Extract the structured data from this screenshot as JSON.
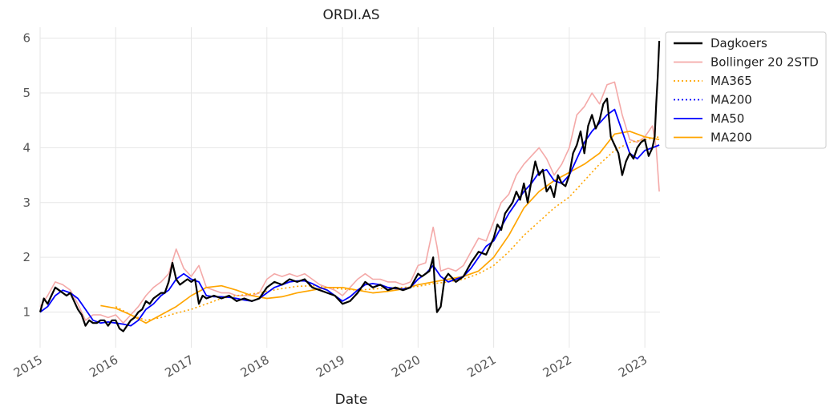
{
  "chart_data": {
    "type": "line",
    "title": "ORDI.AS",
    "xlabel": "Date",
    "ylabel": "",
    "x_ticks": [
      "2015",
      "2016",
      "2017",
      "2018",
      "2019",
      "2020",
      "2021",
      "2022",
      "2023"
    ],
    "y_ticks": [
      "1",
      "2",
      "3",
      "4",
      "5",
      "6"
    ],
    "xlim": [
      2015.0,
      2023.2
    ],
    "ylim": [
      0.35,
      6.2
    ],
    "grid": true,
    "legend_position": "top-right",
    "series": [
      {
        "name": "Dagkoers",
        "color": "#000000",
        "style": "solid",
        "x": [
          2015.0,
          2015.05,
          2015.1,
          2015.15,
          2015.2,
          2015.25,
          2015.3,
          2015.35,
          2015.4,
          2015.45,
          2015.5,
          2015.55,
          2015.6,
          2015.65,
          2015.7,
          2015.75,
          2015.8,
          2015.85,
          2015.9,
          2015.95,
          2016.0,
          2016.05,
          2016.1,
          2016.15,
          2016.2,
          2016.25,
          2016.3,
          2016.35,
          2016.4,
          2016.45,
          2016.5,
          2016.55,
          2016.6,
          2016.65,
          2016.7,
          2016.75,
          2016.8,
          2016.85,
          2016.9,
          2016.95,
          2017.0,
          2017.05,
          2017.1,
          2017.15,
          2017.2,
          2017.3,
          2017.4,
          2017.5,
          2017.6,
          2017.7,
          2017.8,
          2017.9,
          2018.0,
          2018.1,
          2018.2,
          2018.3,
          2018.4,
          2018.5,
          2018.6,
          2018.7,
          2018.8,
          2018.9,
          2019.0,
          2019.1,
          2019.2,
          2019.3,
          2019.4,
          2019.5,
          2019.6,
          2019.7,
          2019.8,
          2019.9,
          2020.0,
          2020.05,
          2020.1,
          2020.15,
          2020.2,
          2020.22,
          2020.25,
          2020.3,
          2020.35,
          2020.4,
          2020.5,
          2020.6,
          2020.7,
          2020.8,
          2020.9,
          2021.0,
          2021.05,
          2021.1,
          2021.15,
          2021.2,
          2021.25,
          2021.3,
          2021.35,
          2021.4,
          2021.45,
          2021.5,
          2021.55,
          2021.6,
          2021.65,
          2021.7,
          2021.75,
          2021.8,
          2021.85,
          2021.9,
          2021.95,
          2022.0,
          2022.05,
          2022.1,
          2022.15,
          2022.2,
          2022.25,
          2022.3,
          2022.35,
          2022.4,
          2022.45,
          2022.5,
          2022.55,
          2022.6,
          2022.65,
          2022.7,
          2022.75,
          2022.8,
          2022.85,
          2022.9,
          2022.95,
          2023.0,
          2023.05,
          2023.1,
          2023.13,
          2023.15,
          2023.17,
          2023.19
        ],
        "y": [
          1.0,
          1.25,
          1.15,
          1.3,
          1.45,
          1.4,
          1.35,
          1.3,
          1.35,
          1.2,
          1.05,
          0.95,
          0.75,
          0.85,
          0.8,
          0.8,
          0.85,
          0.85,
          0.75,
          0.85,
          0.85,
          0.7,
          0.65,
          0.75,
          0.85,
          0.9,
          1.0,
          1.05,
          1.2,
          1.15,
          1.25,
          1.3,
          1.35,
          1.35,
          1.55,
          1.9,
          1.6,
          1.5,
          1.55,
          1.6,
          1.55,
          1.6,
          1.15,
          1.3,
          1.25,
          1.3,
          1.25,
          1.3,
          1.2,
          1.25,
          1.2,
          1.25,
          1.45,
          1.55,
          1.5,
          1.6,
          1.55,
          1.6,
          1.45,
          1.4,
          1.35,
          1.3,
          1.15,
          1.2,
          1.35,
          1.55,
          1.45,
          1.5,
          1.4,
          1.45,
          1.4,
          1.45,
          1.7,
          1.65,
          1.7,
          1.75,
          2.0,
          1.5,
          1.0,
          1.1,
          1.6,
          1.7,
          1.55,
          1.65,
          1.9,
          2.1,
          2.05,
          2.35,
          2.6,
          2.5,
          2.8,
          2.9,
          3.0,
          3.2,
          3.05,
          3.35,
          3.0,
          3.4,
          3.75,
          3.5,
          3.6,
          3.2,
          3.3,
          3.1,
          3.5,
          3.35,
          3.3,
          3.5,
          3.9,
          4.05,
          4.3,
          3.9,
          4.4,
          4.6,
          4.35,
          4.5,
          4.8,
          4.9,
          4.2,
          4.05,
          3.9,
          3.5,
          3.75,
          3.9,
          3.8,
          4.0,
          4.1,
          4.15,
          3.85,
          4.0,
          4.2,
          4.8,
          5.3,
          5.95
        ]
      },
      {
        "name": "Bollinger 20 2STD",
        "color": "#f4a9a8",
        "style": "solid",
        "x": [
          2015.0,
          2015.1,
          2015.2,
          2015.3,
          2015.4,
          2015.5,
          2015.6,
          2015.7,
          2015.8,
          2015.9,
          2016.0,
          2016.1,
          2016.2,
          2016.3,
          2016.4,
          2016.5,
          2016.6,
          2016.7,
          2016.8,
          2016.9,
          2017.0,
          2017.1,
          2017.2,
          2017.3,
          2017.4,
          2017.5,
          2017.6,
          2017.7,
          2017.8,
          2017.9,
          2018.0,
          2018.1,
          2018.2,
          2018.3,
          2018.4,
          2018.5,
          2018.6,
          2018.7,
          2018.8,
          2018.9,
          2019.0,
          2019.1,
          2019.2,
          2019.3,
          2019.4,
          2019.5,
          2019.6,
          2019.7,
          2019.8,
          2019.9,
          2020.0,
          2020.1,
          2020.2,
          2020.25,
          2020.3,
          2020.4,
          2020.5,
          2020.6,
          2020.7,
          2020.8,
          2020.9,
          2021.0,
          2021.1,
          2021.2,
          2021.3,
          2021.4,
          2021.5,
          2021.6,
          2021.7,
          2021.8,
          2021.9,
          2022.0,
          2022.1,
          2022.2,
          2022.3,
          2022.4,
          2022.5,
          2022.6,
          2022.7,
          2022.8,
          2022.9,
          2023.0,
          2023.1,
          2023.15,
          2023.19
        ],
        "y": [
          1.1,
          1.3,
          1.55,
          1.5,
          1.4,
          1.15,
          0.85,
          0.95,
          0.95,
          0.9,
          0.95,
          0.8,
          0.95,
          1.1,
          1.3,
          1.45,
          1.55,
          1.7,
          2.15,
          1.8,
          1.65,
          1.85,
          1.45,
          1.4,
          1.35,
          1.35,
          1.3,
          1.3,
          1.3,
          1.35,
          1.6,
          1.7,
          1.65,
          1.7,
          1.65,
          1.7,
          1.6,
          1.5,
          1.45,
          1.4,
          1.3,
          1.45,
          1.6,
          1.7,
          1.6,
          1.6,
          1.55,
          1.55,
          1.5,
          1.55,
          1.85,
          1.9,
          2.55,
          2.2,
          1.75,
          1.8,
          1.75,
          1.85,
          2.1,
          2.35,
          2.3,
          2.65,
          3.0,
          3.15,
          3.5,
          3.7,
          3.85,
          4.0,
          3.8,
          3.5,
          3.7,
          4.0,
          4.6,
          4.75,
          5.0,
          4.8,
          5.15,
          5.2,
          4.6,
          4.15,
          4.1,
          4.2,
          4.4,
          4.0,
          3.2
        ]
      },
      {
        "name": "MA365",
        "color": "#ffa500",
        "style": "dotted",
        "x": [
          2016.0,
          2016.2,
          2016.4,
          2016.6,
          2016.8,
          2017.0,
          2017.2,
          2017.4,
          2017.6,
          2017.8,
          2018.0,
          2018.2,
          2018.4,
          2018.6,
          2018.8,
          2019.0,
          2019.2,
          2019.4,
          2019.6,
          2019.8,
          2020.0,
          2020.2,
          2020.4,
          2020.6,
          2020.8,
          2021.0,
          2021.2,
          2021.4,
          2021.6,
          2021.8,
          2022.0,
          2022.2,
          2022.4,
          2022.6,
          2022.8,
          2023.0,
          2023.19
        ],
        "y": [
          1.1,
          0.95,
          0.85,
          0.9,
          0.98,
          1.05,
          1.15,
          1.25,
          1.3,
          1.33,
          1.38,
          1.43,
          1.47,
          1.48,
          1.45,
          1.42,
          1.4,
          1.42,
          1.44,
          1.45,
          1.47,
          1.52,
          1.55,
          1.6,
          1.7,
          1.85,
          2.1,
          2.4,
          2.65,
          2.9,
          3.1,
          3.4,
          3.7,
          3.95,
          4.1,
          4.15,
          4.2
        ]
      },
      {
        "name": "MA200",
        "color": "#0000ff",
        "style": "dotted",
        "x": [],
        "y": []
      },
      {
        "name": "MA50",
        "color": "#0000ff",
        "style": "solid",
        "x": [
          2015.0,
          2015.1,
          2015.2,
          2015.3,
          2015.4,
          2015.5,
          2015.6,
          2015.7,
          2015.8,
          2015.9,
          2016.0,
          2016.1,
          2016.2,
          2016.3,
          2016.4,
          2016.5,
          2016.6,
          2016.7,
          2016.8,
          2016.9,
          2017.0,
          2017.1,
          2017.2,
          2017.3,
          2017.4,
          2017.5,
          2017.6,
          2017.7,
          2017.8,
          2017.9,
          2018.0,
          2018.1,
          2018.2,
          2018.3,
          2018.4,
          2018.5,
          2018.6,
          2018.7,
          2018.8,
          2018.9,
          2019.0,
          2019.1,
          2019.2,
          2019.3,
          2019.4,
          2019.5,
          2019.6,
          2019.7,
          2019.8,
          2019.9,
          2020.0,
          2020.1,
          2020.2,
          2020.3,
          2020.4,
          2020.5,
          2020.6,
          2020.7,
          2020.8,
          2020.9,
          2021.0,
          2021.1,
          2021.2,
          2021.3,
          2021.4,
          2021.5,
          2021.6,
          2021.7,
          2021.8,
          2021.9,
          2022.0,
          2022.1,
          2022.2,
          2022.3,
          2022.4,
          2022.5,
          2022.6,
          2022.7,
          2022.8,
          2022.9,
          2023.0,
          2023.1,
          2023.19
        ],
        "y": [
          1.0,
          1.1,
          1.3,
          1.4,
          1.35,
          1.25,
          1.05,
          0.85,
          0.8,
          0.82,
          0.8,
          0.78,
          0.75,
          0.85,
          1.05,
          1.15,
          1.3,
          1.4,
          1.6,
          1.7,
          1.6,
          1.55,
          1.3,
          1.28,
          1.28,
          1.27,
          1.25,
          1.22,
          1.2,
          1.25,
          1.35,
          1.45,
          1.5,
          1.55,
          1.57,
          1.57,
          1.52,
          1.45,
          1.4,
          1.3,
          1.2,
          1.28,
          1.4,
          1.5,
          1.52,
          1.5,
          1.45,
          1.43,
          1.42,
          1.45,
          1.6,
          1.7,
          1.85,
          1.65,
          1.55,
          1.6,
          1.65,
          1.8,
          2.0,
          2.2,
          2.3,
          2.55,
          2.8,
          3.0,
          3.2,
          3.35,
          3.55,
          3.6,
          3.4,
          3.35,
          3.5,
          3.8,
          4.1,
          4.3,
          4.45,
          4.6,
          4.7,
          4.3,
          3.9,
          3.8,
          3.95,
          4.0,
          4.05
        ]
      },
      {
        "name": "MA200",
        "color": "#ffa500",
        "style": "solid",
        "x": [
          2015.8,
          2016.0,
          2016.2,
          2016.4,
          2016.6,
          2016.8,
          2017.0,
          2017.2,
          2017.4,
          2017.6,
          2017.8,
          2018.0,
          2018.2,
          2018.4,
          2018.6,
          2018.8,
          2019.0,
          2019.2,
          2019.4,
          2019.6,
          2019.8,
          2020.0,
          2020.2,
          2020.4,
          2020.6,
          2020.8,
          2021.0,
          2021.2,
          2021.4,
          2021.6,
          2021.8,
          2022.0,
          2022.2,
          2022.4,
          2022.6,
          2022.8,
          2023.0,
          2023.19
        ],
        "y": [
          1.12,
          1.07,
          0.95,
          0.8,
          0.95,
          1.1,
          1.3,
          1.45,
          1.48,
          1.4,
          1.3,
          1.25,
          1.28,
          1.35,
          1.4,
          1.45,
          1.45,
          1.4,
          1.35,
          1.38,
          1.42,
          1.5,
          1.55,
          1.6,
          1.65,
          1.75,
          2.0,
          2.4,
          2.9,
          3.2,
          3.4,
          3.55,
          3.7,
          3.9,
          4.25,
          4.3,
          4.2,
          4.15
        ]
      }
    ]
  }
}
